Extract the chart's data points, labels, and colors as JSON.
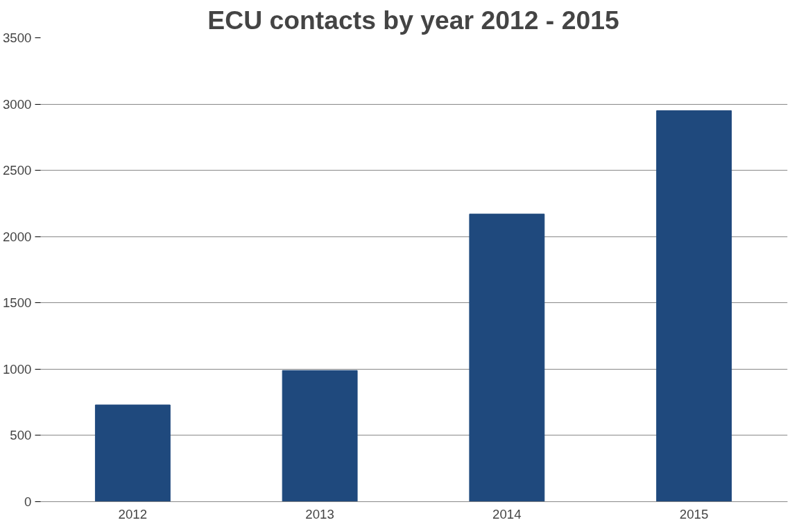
{
  "chart_data": {
    "type": "bar",
    "title": "ECU contacts by year 2012 - 2015",
    "categories": [
      "2012",
      "2013",
      "2014",
      "2015"
    ],
    "values": [
      730,
      990,
      2170,
      2950
    ],
    "color": "#1f497d",
    "ylim": [
      0,
      3500
    ],
    "yticks": [
      0,
      500,
      1000,
      1500,
      2000,
      2500,
      3000,
      3500
    ],
    "grid": "y"
  }
}
